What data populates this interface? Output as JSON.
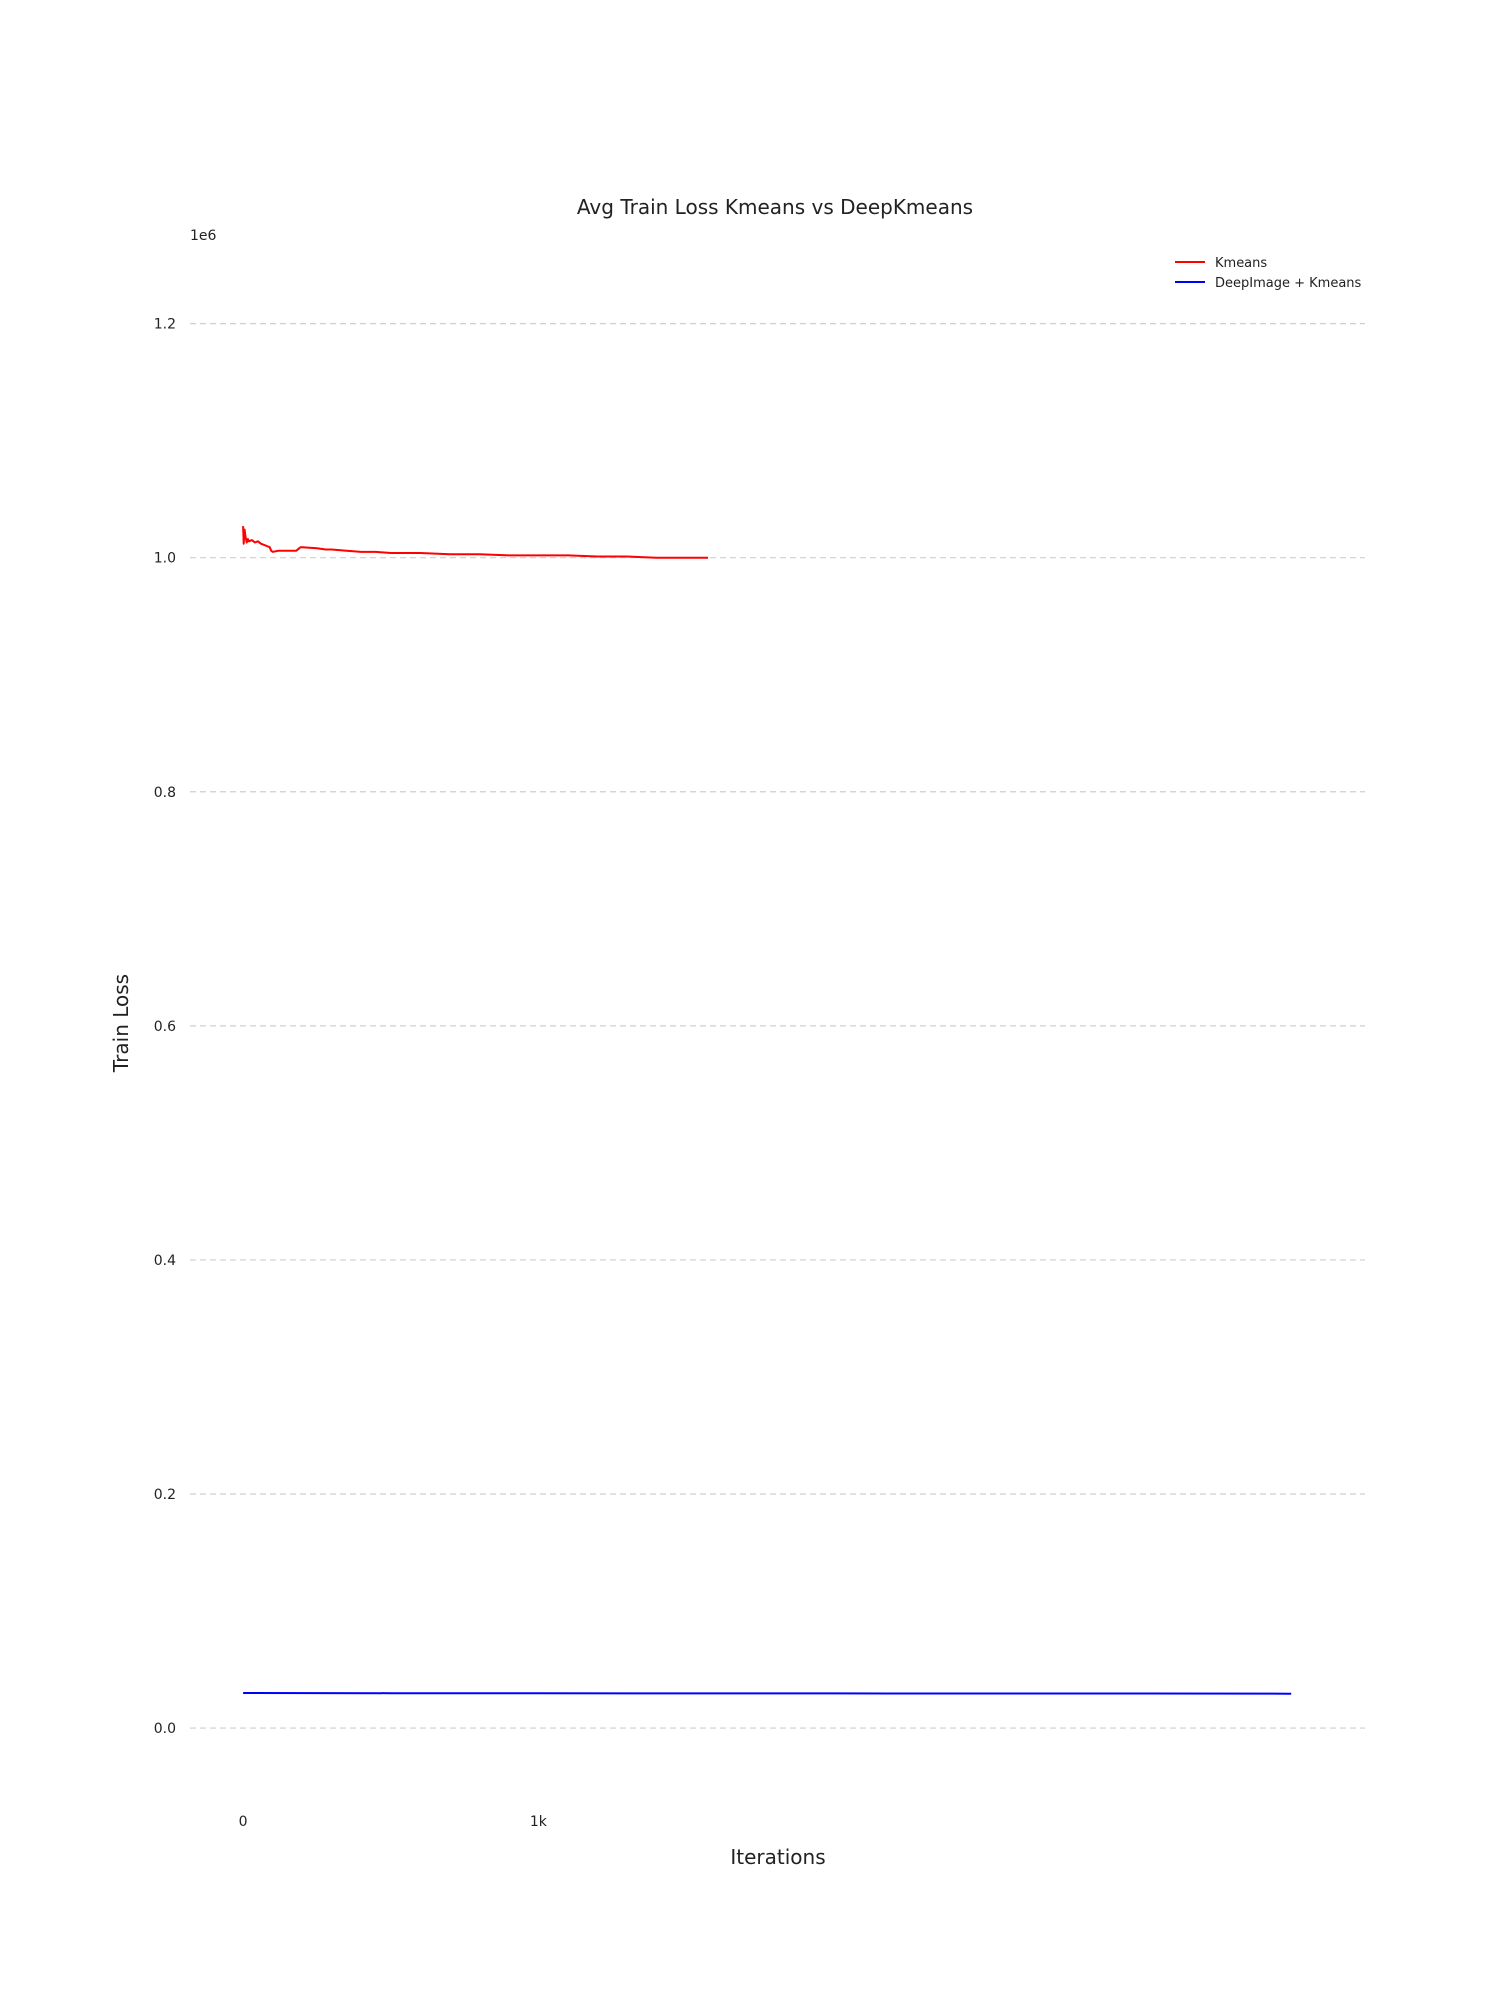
{
  "chart_data": {
    "type": "line",
    "title": "Avg Train Loss Kmeans vs DeepKmeans",
    "xlabel": "Iterations",
    "ylabel": "Train Loss",
    "y_multiplier_label": "1e6",
    "xlim": [
      -180,
      3800
    ],
    "ylim": [
      -0.07,
      1.28
    ],
    "x_ticks": [
      {
        "value": 0,
        "label": "0"
      },
      {
        "value": 1000,
        "label": "1k"
      }
    ],
    "y_ticks": [
      {
        "value": 0.0,
        "label": "0.0"
      },
      {
        "value": 0.2,
        "label": "0.2"
      },
      {
        "value": 0.4,
        "label": "0.4"
      },
      {
        "value": 0.6,
        "label": "0.6"
      },
      {
        "value": 0.8,
        "label": "0.8"
      },
      {
        "value": 1.0,
        "label": "1.0"
      },
      {
        "value": 1.2,
        "label": "1.2"
      }
    ],
    "grid": "horizontal-dashed",
    "legend_position": "top-right",
    "series": [
      {
        "name": "Kmeans",
        "color": "#ff0000",
        "x": [
          0,
          2,
          5,
          8,
          12,
          16,
          20,
          30,
          40,
          50,
          60,
          70,
          80,
          90,
          95,
          100,
          120,
          150,
          180,
          190,
          195,
          200,
          250,
          280,
          300,
          350,
          400,
          450,
          500,
          600,
          700,
          800,
          900,
          1000,
          1100,
          1200,
          1300,
          1400,
          1500,
          1575
        ],
        "y": [
          1.027,
          1.012,
          1.024,
          1.018,
          1.013,
          1.016,
          1.014,
          1.015,
          1.013,
          1.014,
          1.012,
          1.011,
          1.01,
          1.009,
          1.006,
          1.005,
          1.006,
          1.006,
          1.006,
          1.008,
          1.009,
          1.009,
          1.008,
          1.007,
          1.007,
          1.006,
          1.005,
          1.005,
          1.004,
          1.004,
          1.003,
          1.003,
          1.002,
          1.002,
          1.002,
          1.001,
          1.001,
          1.0,
          1.0,
          1.0
        ]
      },
      {
        "name": "DeepImage + Kmeans",
        "color": "#0000ff",
        "x": [
          0,
          500,
          1000,
          1500,
          2000,
          2500,
          3000,
          3550
        ],
        "y": [
          0.03,
          0.0298,
          0.0297,
          0.0296,
          0.0296,
          0.0295,
          0.0295,
          0.0294
        ]
      }
    ]
  }
}
